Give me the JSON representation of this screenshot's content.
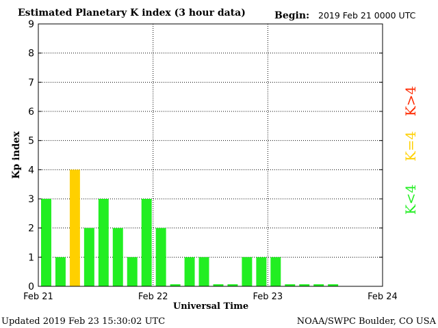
{
  "header": {
    "title": "Estimated Planetary K index (3 hour data)",
    "begin_label": "Begin:",
    "begin_value": "2019 Feb 21 0000 UTC"
  },
  "footer": {
    "updated": "Updated 2019 Feb 23 15:30:02 UTC",
    "credit": "NOAA/SWPC Boulder, CO USA"
  },
  "legend": [
    {
      "label": "K>4",
      "color": "#ff2a00"
    },
    {
      "label": "K=4",
      "color": "#ffd000"
    },
    {
      "label": "K<4",
      "color": "#22ee22"
    }
  ],
  "chart_data": {
    "type": "bar",
    "xlabel": "Universal Time",
    "ylabel": "Kp index",
    "ylim": [
      0,
      9
    ],
    "yticks": [
      "0",
      "1",
      "2",
      "3",
      "4",
      "5",
      "6",
      "7",
      "8",
      "9"
    ],
    "x_ticks": [
      "Feb 21",
      "Feb 22",
      "Feb 23",
      "Feb 24"
    ],
    "grid": true,
    "bar_interval_hours": 3,
    "values": [
      3,
      1,
      4,
      2,
      3,
      2,
      1,
      3,
      2,
      0,
      1,
      1,
      0,
      0,
      1,
      1,
      1,
      0,
      0,
      0,
      0
    ],
    "colors": {
      "low": "#22ee22",
      "equal": "#ffd000",
      "high": "#ff2a00"
    }
  }
}
